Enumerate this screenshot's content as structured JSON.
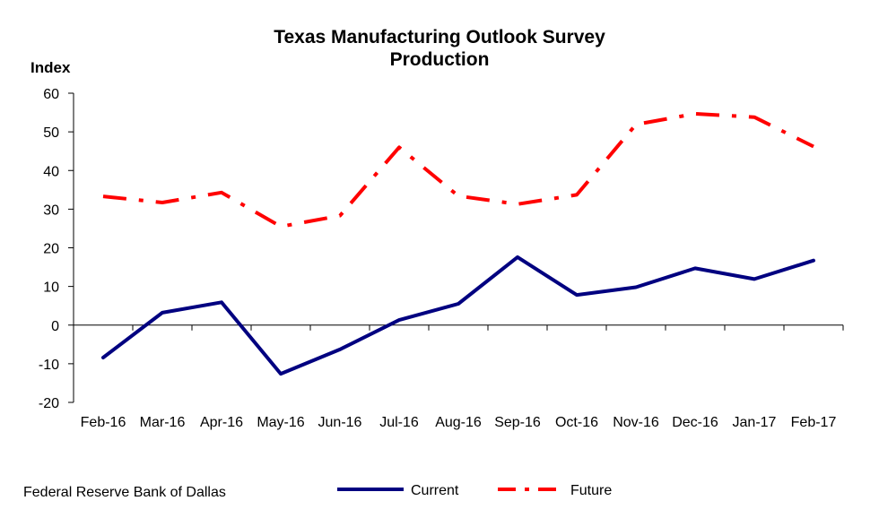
{
  "chart_data": {
    "type": "line",
    "title": "Texas Manufacturing Outlook Survey",
    "subtitle": "Production",
    "ylabel": "Index",
    "xlabel": "",
    "categories": [
      "Feb-16",
      "Mar-16",
      "Apr-16",
      "May-16",
      "Jun-16",
      "Jul-16",
      "Aug-16",
      "Sep-16",
      "Oct-16",
      "Nov-16",
      "Dec-16",
      "Jan-17",
      "Feb-17"
    ],
    "ylim": [
      -20,
      60
    ],
    "yticks": [
      60,
      50,
      40,
      30,
      20,
      10,
      0,
      -10,
      -20
    ],
    "grid": false,
    "legend_position": "bottom",
    "series": [
      {
        "name": "Current",
        "color": "#000080",
        "style": "solid",
        "values": [
          -8.4,
          3.2,
          5.9,
          -12.6,
          -6.3,
          1.3,
          5.5,
          17.6,
          7.8,
          9.8,
          14.7,
          11.9,
          16.7
        ]
      },
      {
        "name": "Future",
        "color": "#ff0000",
        "style": "dash-dot",
        "values": [
          33.3,
          31.7,
          34.3,
          25.5,
          28.3,
          46.0,
          33.4,
          31.3,
          33.7,
          51.9,
          54.7,
          53.8,
          46.2
        ]
      }
    ]
  },
  "footer": {
    "source": "Federal Reserve Bank of Dallas"
  }
}
